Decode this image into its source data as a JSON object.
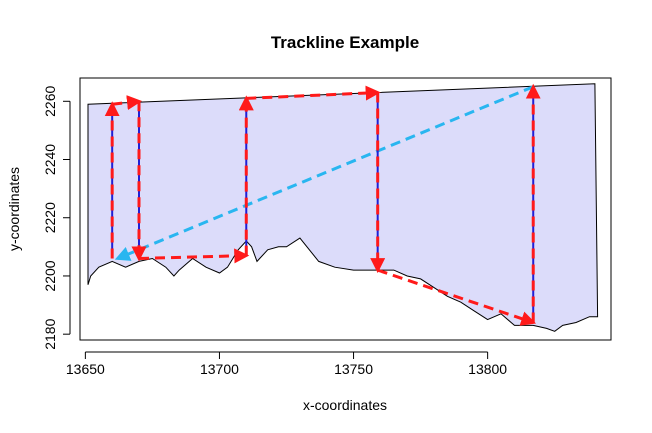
{
  "chart_data": {
    "type": "line",
    "title": "Trackline Example",
    "xlabel": "x-coordinates",
    "ylabel": "y-coordinates",
    "xlim": [
      13648,
      13846
    ],
    "ylim": [
      2178,
      2268
    ],
    "x_ticks": [
      13650,
      13700,
      13750,
      13800
    ],
    "y_ticks": [
      2180,
      2200,
      2220,
      2240,
      2260
    ],
    "grid": false,
    "colors": {
      "polygon_fill": "#dcdcfa",
      "polygon_stroke": "#000000",
      "vertical_segments": "#1f1fd6",
      "trackline": "#ff1a1a",
      "return_line": "#29b6f0"
    },
    "polygon": {
      "x": [
        13651,
        13652,
        13655,
        13660,
        13665,
        13670,
        13675,
        13680,
        13683,
        13685,
        13690,
        13695,
        13700,
        13703,
        13707,
        13710,
        13712,
        13714,
        13718,
        13722,
        13725,
        13730,
        13737,
        13743,
        13750,
        13757,
        13760,
        13765,
        13770,
        13775,
        13780,
        13785,
        13790,
        13795,
        13800,
        13805,
        13810,
        13817,
        13822,
        13825,
        13828,
        13833,
        13838,
        13841,
        13840,
        13651
      ],
      "y": [
        2197,
        2200,
        2203,
        2205,
        2203,
        2205,
        2206,
        2203,
        2200,
        2202,
        2206,
        2203,
        2201,
        2203,
        2209,
        2212,
        2210,
        2205,
        2209,
        2210,
        2210,
        2213,
        2205,
        2203,
        2202,
        2202,
        2202,
        2202,
        2200,
        2199,
        2196,
        2193,
        2191,
        2188,
        2185,
        2187,
        2183,
        2183,
        2182,
        2181,
        2183,
        2184,
        2186,
        2186,
        2266,
        2259
      ]
    },
    "verticals": [
      {
        "x": 13660,
        "y_from": 2206,
        "y_to": 2259
      },
      {
        "x": 13670,
        "y_from": 2260,
        "y_to": 2206
      },
      {
        "x": 13710,
        "y_from": 2207,
        "y_to": 2261
      },
      {
        "x": 13759,
        "y_from": 2263,
        "y_to": 2202
      },
      {
        "x": 13817,
        "y_from": 2184,
        "y_to": 2265
      }
    ],
    "horizontals": [
      {
        "x_from": 13660,
        "y_from": 2259,
        "x_to": 13670,
        "y_to": 2260
      },
      {
        "x_from": 13670,
        "y_from": 2206,
        "x_to": 13710,
        "y_to": 2207
      },
      {
        "x_from": 13710,
        "y_from": 2261,
        "x_to": 13759,
        "y_to": 2263
      },
      {
        "x_from": 13759,
        "y_from": 2202,
        "x_to": 13817,
        "y_to": 2184
      }
    ],
    "return_line": {
      "x_from": 13817,
      "y_from": 2265,
      "x_to": 13662,
      "y_to": 2206
    }
  }
}
